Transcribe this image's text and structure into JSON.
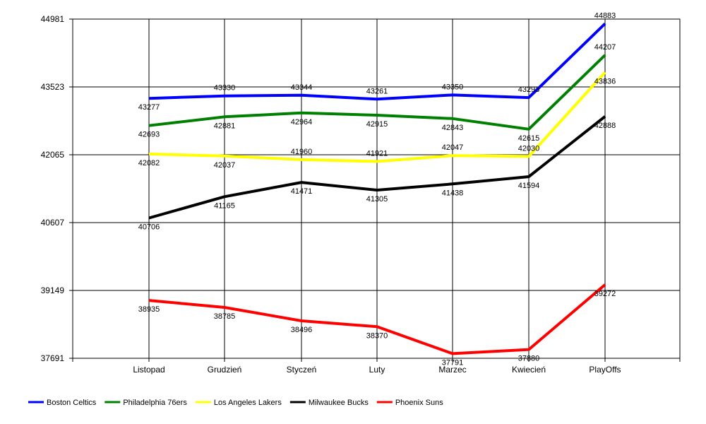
{
  "chart_data": {
    "type": "line",
    "title": "",
    "xlabel": "",
    "ylabel": "",
    "ylim": [
      37691,
      44981
    ],
    "yticks": [
      37691,
      39149,
      40607,
      42065,
      43523,
      44981
    ],
    "categories": [
      "Listopad",
      "Grudzień",
      "Styczeń",
      "Luty",
      "Marzec",
      "Kwiecień",
      "PlayOffs"
    ],
    "grid": true,
    "legend_position": "bottom-left",
    "series": [
      {
        "name": "Boston Celtics",
        "color": "#0000ff",
        "values": [
          43277,
          43330,
          43344,
          43261,
          43350,
          43293,
          44883
        ]
      },
      {
        "name": "Philadelphia 76ers",
        "color": "#008000",
        "values": [
          42693,
          42881,
          42964,
          42915,
          42843,
          42615,
          44207
        ]
      },
      {
        "name": "Los Angeles Lakers",
        "color": "#ffff00",
        "values": [
          42082,
          42037,
          41960,
          41921,
          42047,
          42030,
          43836
        ]
      },
      {
        "name": "Milwaukee Bucks",
        "color": "#000000",
        "values": [
          40706,
          41165,
          41471,
          41305,
          41438,
          41594,
          42888
        ]
      },
      {
        "name": "Phoenix Suns",
        "color": "#ff0000",
        "values": [
          38935,
          38785,
          38496,
          38370,
          37791,
          37880,
          39272
        ]
      }
    ]
  }
}
